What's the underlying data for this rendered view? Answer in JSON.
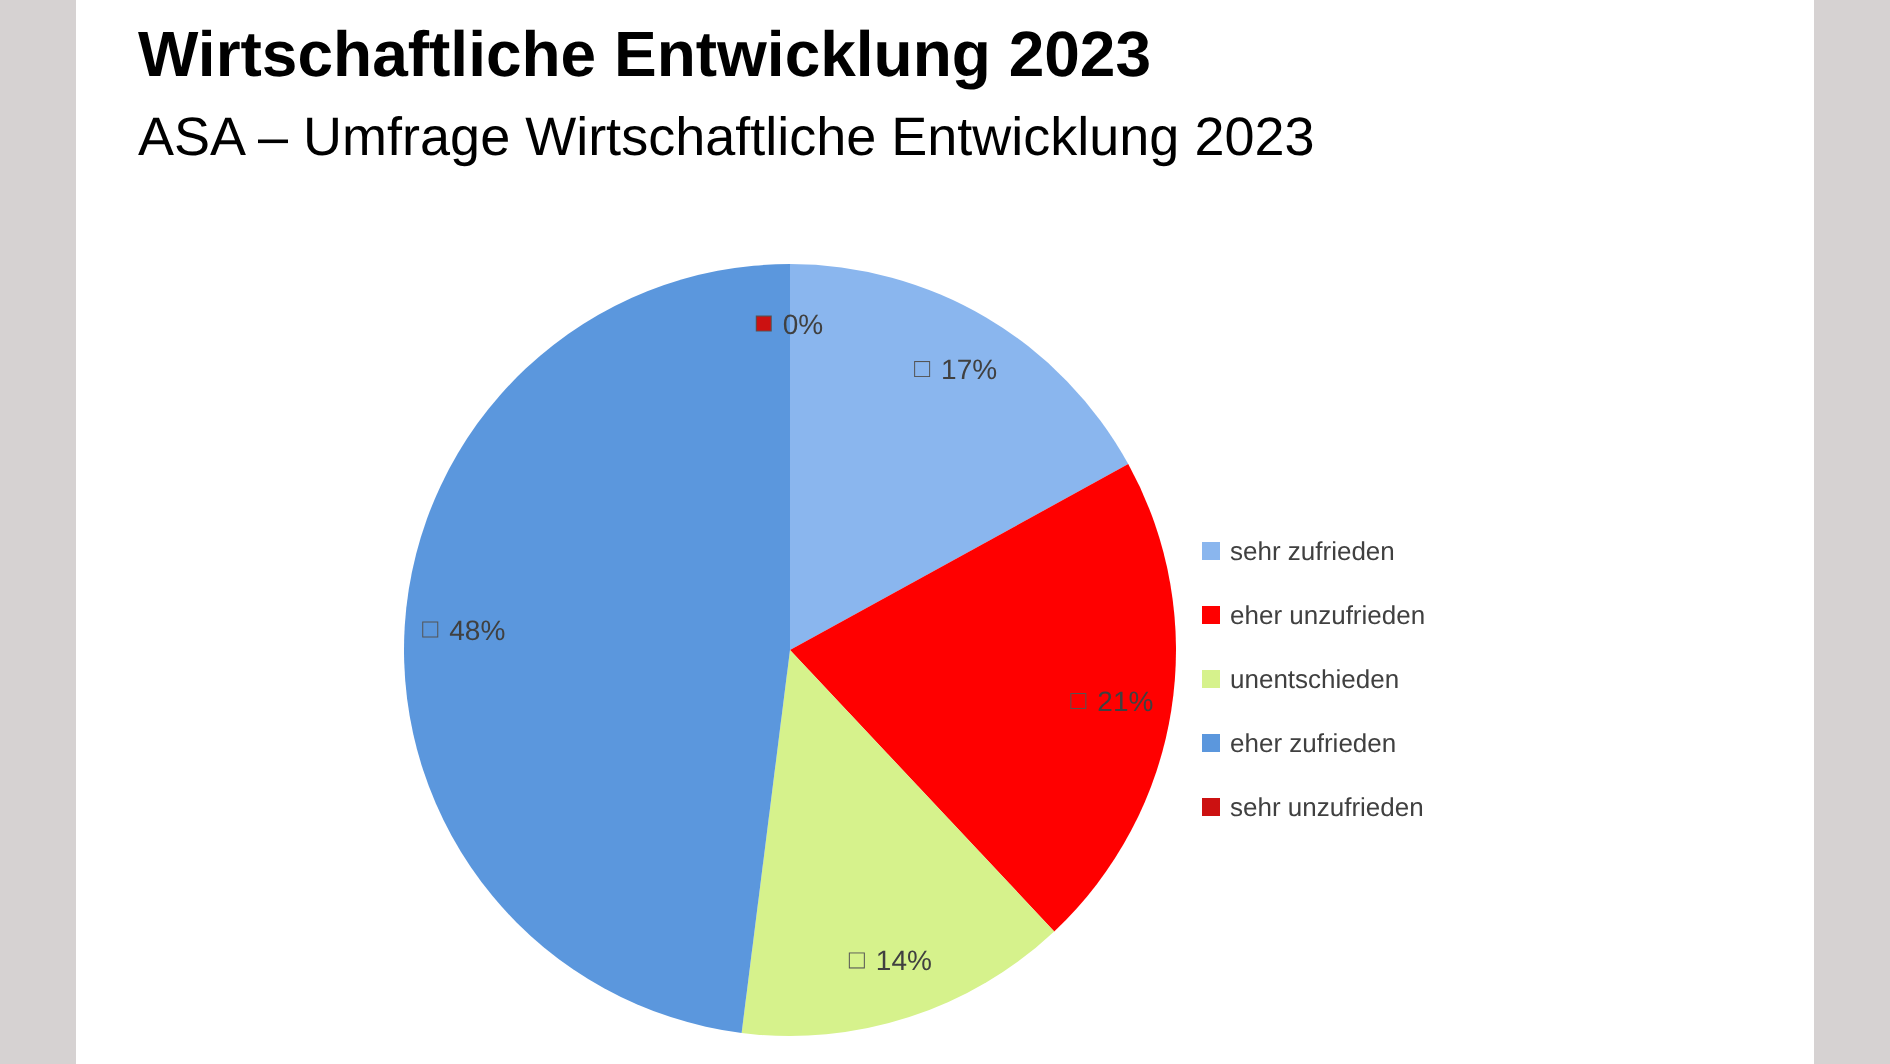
{
  "chart_data": {
    "type": "pie",
    "title": "Wirtschaftliche Entwicklung 2023",
    "subtitle": "ASA – Umfrage Wirtschaftliche Entwicklung 2023",
    "categories": [
      "sehr zufrieden",
      "eher unzufrieden",
      "unentschieden",
      "eher zufrieden",
      "sehr unzufrieden"
    ],
    "values": [
      17,
      21,
      14,
      48,
      0
    ],
    "colors": [
      "#8ab6ee",
      "#ff0000",
      "#d6f28c",
      "#5b97dd",
      "#cc1111"
    ],
    "value_labels": [
      "17%",
      "21%",
      "14%",
      "48%",
      "0%"
    ],
    "legend": "right"
  }
}
